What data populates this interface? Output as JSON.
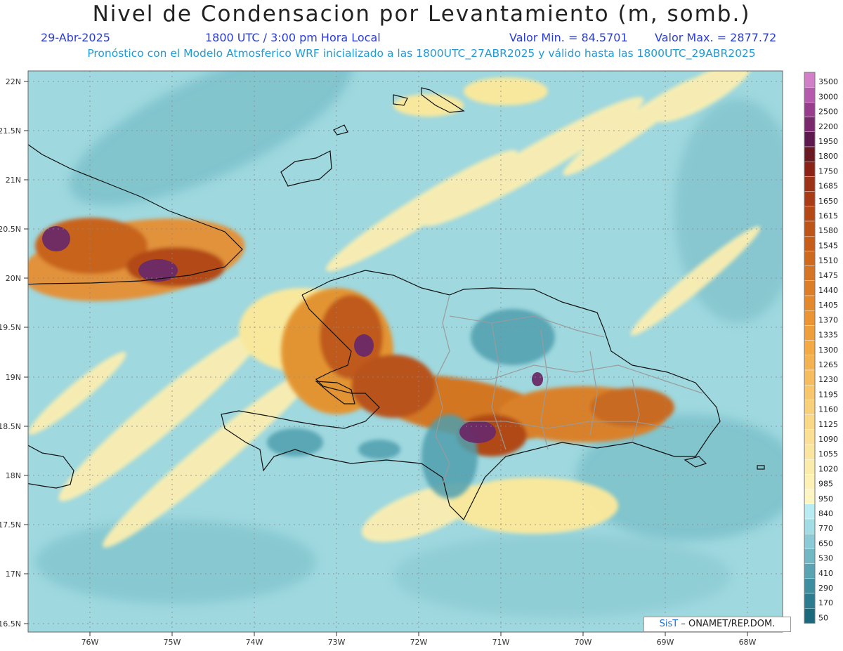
{
  "header": {
    "title": "Nivel de Condensacion por Levantamiento (m, somb.)",
    "date": "29-Abr-2025",
    "time": "1800 UTC / 3:00 pm Hora Local",
    "vmin_label": "Valor Min. = 84.5701",
    "vmax_label": "Valor Max. = 2877.72",
    "model_info": "Pronóstico con el Modelo Atmosferico WRF inicializado a las 1800UTC_27ABR2025 y válido hasta las  1800UTC_29ABR2025"
  },
  "axes": {
    "lat_labels": [
      "22N",
      "21.5N",
      "21N",
      "20.5N",
      "20N",
      "19.5N",
      "19N",
      "18.5N",
      "18N",
      "17.5N",
      "17N",
      "16.5N"
    ],
    "lon_labels": [
      "76W",
      "75W",
      "74W",
      "73W",
      "72W",
      "71W",
      "70W",
      "69W",
      "68W"
    ]
  },
  "legend": {
    "levels": [
      "3500",
      "3000",
      "2500",
      "2200",
      "1950",
      "1800",
      "1750",
      "1685",
      "1650",
      "1615",
      "1580",
      "1545",
      "1510",
      "1475",
      "1440",
      "1405",
      "1370",
      "1335",
      "1300",
      "1265",
      "1230",
      "1195",
      "1160",
      "1125",
      "1090",
      "1055",
      "1020",
      "985",
      "950",
      "840",
      "770",
      "650",
      "530",
      "410",
      "290",
      "170",
      "50"
    ],
    "colors": [
      "#d27fca",
      "#b65aae",
      "#983c8c",
      "#7a2a6c",
      "#5e1a4e",
      "#6a1a22",
      "#8a2216",
      "#9c3216",
      "#a83c16",
      "#b44816",
      "#bd5418",
      "#c65e1a",
      "#cd6a1e",
      "#d47424",
      "#dc7e28",
      "#e3892d",
      "#ea9433",
      "#ef9e3c",
      "#f2a946",
      "#f4b352",
      "#f6bd60",
      "#f7c66d",
      "#f8cf7b",
      "#f9d888",
      "#fadf95",
      "#fbe6a1",
      "#fcecac",
      "#fdf1b6",
      "#fef6c2",
      "#b8ecf2",
      "#a2dde6",
      "#8ccbd6",
      "#72b7c4",
      "#5aa3b2",
      "#3d8fa0",
      "#2a7c8e",
      "#1a6a7c"
    ]
  },
  "credit": {
    "logo": "SisT",
    "text": "– ONAMET/REP.DOM."
  }
}
